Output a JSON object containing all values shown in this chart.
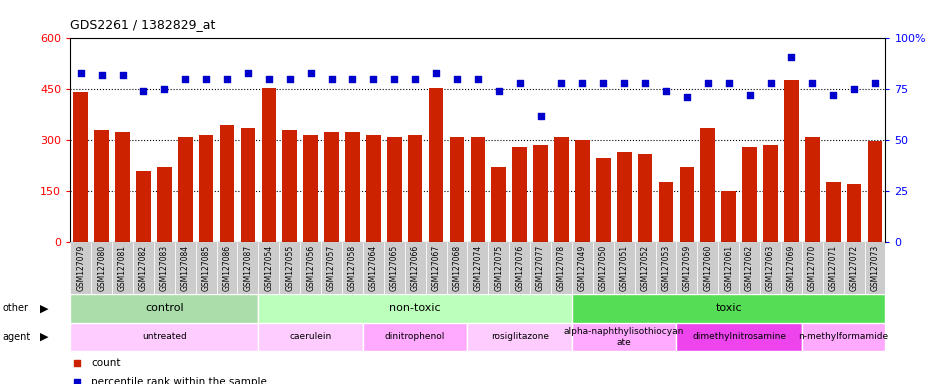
{
  "title": "GDS2261 / 1382829_at",
  "gsm_labels": [
    "GSM127079",
    "GSM127080",
    "GSM127081",
    "GSM127082",
    "GSM127083",
    "GSM127084",
    "GSM127085",
    "GSM127086",
    "GSM127087",
    "GSM127054",
    "GSM127055",
    "GSM127056",
    "GSM127057",
    "GSM127058",
    "GSM127064",
    "GSM127065",
    "GSM127066",
    "GSM127067",
    "GSM127068",
    "GSM127074",
    "GSM127075",
    "GSM127076",
    "GSM127077",
    "GSM127078",
    "GSM127049",
    "GSM127050",
    "GSM127051",
    "GSM127052",
    "GSM127053",
    "GSM127059",
    "GSM127060",
    "GSM127061",
    "GSM127062",
    "GSM127063",
    "GSM127069",
    "GSM127070",
    "GSM127071",
    "GSM127072",
    "GSM127073"
  ],
  "counts": [
    443,
    330,
    325,
    208,
    222,
    310,
    315,
    345,
    335,
    455,
    330,
    315,
    325,
    325,
    315,
    310,
    315,
    455,
    310,
    310,
    220,
    280,
    285,
    310,
    300,
    248,
    265,
    260,
    178,
    220,
    335,
    150,
    280,
    285,
    477,
    310,
    178,
    170,
    298
  ],
  "percentiles": [
    83,
    82,
    82,
    74,
    75,
    80,
    80,
    80,
    83,
    80,
    80,
    83,
    80,
    80,
    80,
    80,
    80,
    83,
    80,
    80,
    74,
    78,
    62,
    78,
    78,
    78,
    78,
    78,
    74,
    71,
    78,
    78,
    72,
    78,
    91,
    78,
    72,
    75,
    78
  ],
  "bar_color": "#cc2200",
  "dot_color": "#0000cc",
  "ylim_left": [
    0,
    600
  ],
  "ylim_right": [
    0,
    100
  ],
  "yticks_left": [
    0,
    150,
    300,
    450,
    600
  ],
  "yticks_right": [
    0,
    25,
    50,
    75,
    100
  ],
  "group_other": [
    {
      "label": "control",
      "start": 0,
      "end": 9,
      "color": "#aaddaa"
    },
    {
      "label": "non-toxic",
      "start": 9,
      "end": 24,
      "color": "#bbffbb"
    },
    {
      "label": "toxic",
      "start": 24,
      "end": 39,
      "color": "#55dd55"
    }
  ],
  "group_agent": [
    {
      "label": "untreated",
      "start": 0,
      "end": 9,
      "color": "#ffccff"
    },
    {
      "label": "caerulein",
      "start": 9,
      "end": 14,
      "color": "#ffccff"
    },
    {
      "label": "dinitrophenol",
      "start": 14,
      "end": 19,
      "color": "#ffaaff"
    },
    {
      "label": "rosiglitazone",
      "start": 19,
      "end": 24,
      "color": "#ffccff"
    },
    {
      "label": "alpha-naphthylisothiocyan\nate",
      "start": 24,
      "end": 29,
      "color": "#ffaaff"
    },
    {
      "label": "dimethylnitrosamine",
      "start": 29,
      "end": 35,
      "color": "#ee44ee"
    },
    {
      "label": "n-methylformamide",
      "start": 35,
      "end": 39,
      "color": "#ffaaff"
    }
  ],
  "bg_color": "#ffffff",
  "plot_bg": "#ffffff",
  "xtick_bg": "#dddddd"
}
